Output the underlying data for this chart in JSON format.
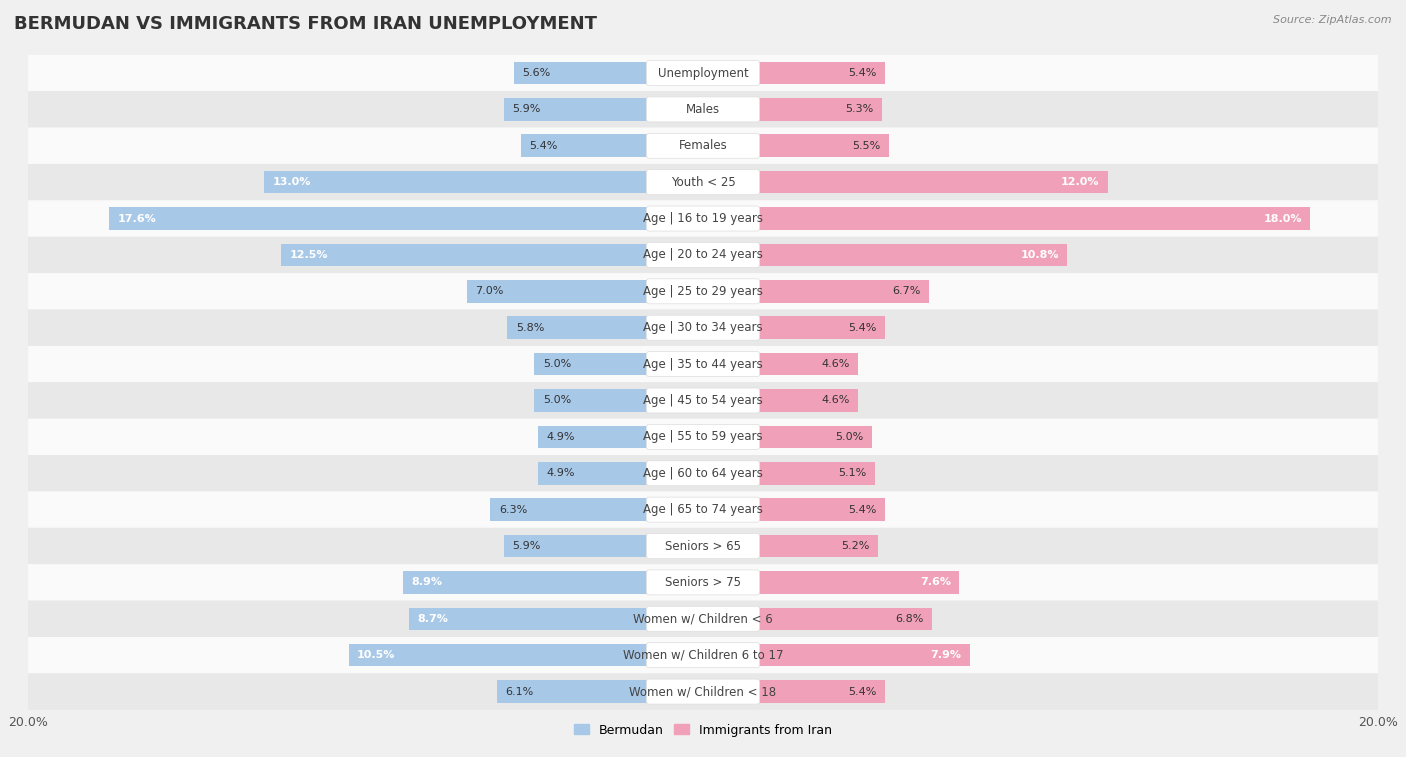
{
  "title": "BERMUDAN VS IMMIGRANTS FROM IRAN UNEMPLOYMENT",
  "source": "Source: ZipAtlas.com",
  "categories": [
    "Unemployment",
    "Males",
    "Females",
    "Youth < 25",
    "Age | 16 to 19 years",
    "Age | 20 to 24 years",
    "Age | 25 to 29 years",
    "Age | 30 to 34 years",
    "Age | 35 to 44 years",
    "Age | 45 to 54 years",
    "Age | 55 to 59 years",
    "Age | 60 to 64 years",
    "Age | 65 to 74 years",
    "Seniors > 65",
    "Seniors > 75",
    "Women w/ Children < 6",
    "Women w/ Children 6 to 17",
    "Women w/ Children < 18"
  ],
  "bermudan": [
    5.6,
    5.9,
    5.4,
    13.0,
    17.6,
    12.5,
    7.0,
    5.8,
    5.0,
    5.0,
    4.9,
    4.9,
    6.3,
    5.9,
    8.9,
    8.7,
    10.5,
    6.1
  ],
  "iran": [
    5.4,
    5.3,
    5.5,
    12.0,
    18.0,
    10.8,
    6.7,
    5.4,
    4.6,
    4.6,
    5.0,
    5.1,
    5.4,
    5.2,
    7.6,
    6.8,
    7.9,
    5.4
  ],
  "bermudan_color": "#a8c8e8",
  "iran_color": "#f0a0b8",
  "background_color": "#f0f0f0",
  "row_bg_light": "#fafafa",
  "row_bg_dark": "#e8e8e8",
  "label_bg": "#ffffff",
  "max_val": 20.0,
  "legend_bermudan": "Bermudan",
  "legend_iran": "Immigrants from Iran",
  "title_fontsize": 13,
  "label_fontsize": 8.5,
  "value_fontsize": 8.0
}
